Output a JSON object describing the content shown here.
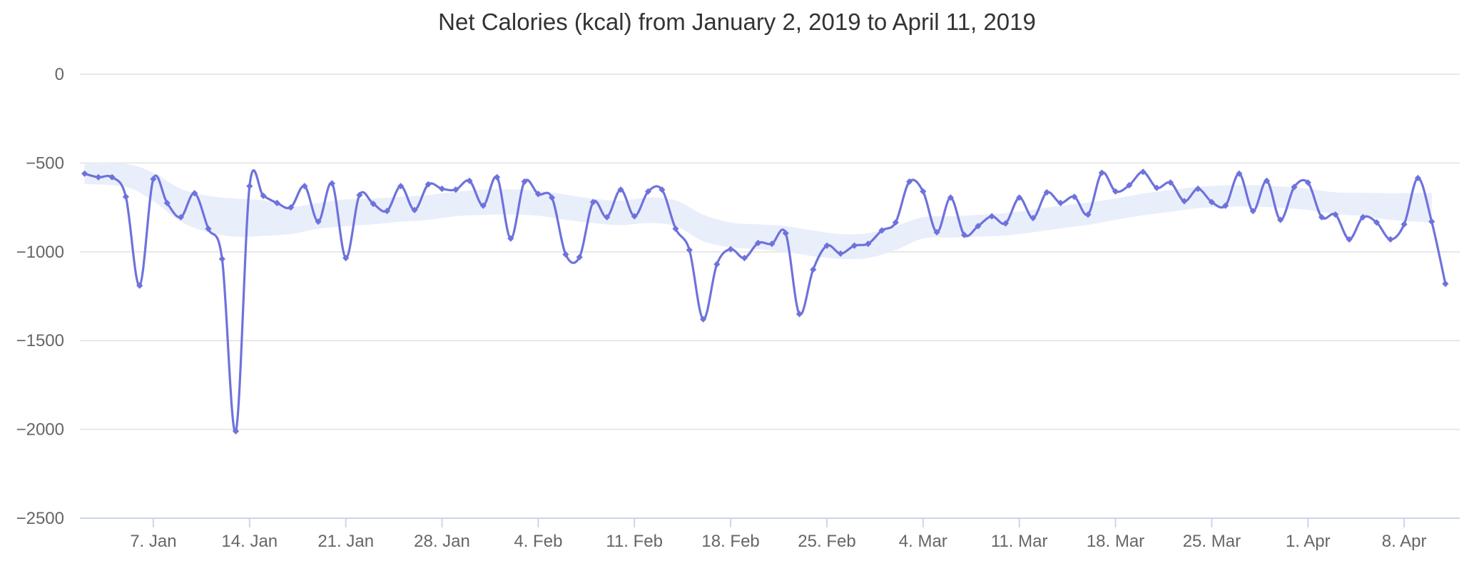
{
  "chart_data": {
    "type": "line",
    "title": "Net Calories (kcal) from January 2, 2019 to April 11, 2019",
    "xlabel": "",
    "ylabel": "",
    "ylim": [
      -2500,
      0
    ],
    "grid": true,
    "legend": "none",
    "series_name": "Net Calories (kcal)",
    "dates": [
      "2019-01-02",
      "2019-01-03",
      "2019-01-04",
      "2019-01-05",
      "2019-01-06",
      "2019-01-07",
      "2019-01-08",
      "2019-01-09",
      "2019-01-10",
      "2019-01-11",
      "2019-01-12",
      "2019-01-13",
      "2019-01-14",
      "2019-01-15",
      "2019-01-16",
      "2019-01-17",
      "2019-01-18",
      "2019-01-19",
      "2019-01-20",
      "2019-01-21",
      "2019-01-22",
      "2019-01-23",
      "2019-01-24",
      "2019-01-25",
      "2019-01-26",
      "2019-01-27",
      "2019-01-28",
      "2019-01-29",
      "2019-01-30",
      "2019-01-31",
      "2019-02-01",
      "2019-02-02",
      "2019-02-03",
      "2019-02-04",
      "2019-02-05",
      "2019-02-06",
      "2019-02-07",
      "2019-02-08",
      "2019-02-09",
      "2019-02-10",
      "2019-02-11",
      "2019-02-12",
      "2019-02-13",
      "2019-02-14",
      "2019-02-15",
      "2019-02-16",
      "2019-02-17",
      "2019-02-18",
      "2019-02-19",
      "2019-02-20",
      "2019-02-21",
      "2019-02-22",
      "2019-02-23",
      "2019-02-24",
      "2019-02-25",
      "2019-02-26",
      "2019-02-27",
      "2019-02-28",
      "2019-03-01",
      "2019-03-02",
      "2019-03-03",
      "2019-03-04",
      "2019-03-05",
      "2019-03-06",
      "2019-03-07",
      "2019-03-08",
      "2019-03-09",
      "2019-03-10",
      "2019-03-11",
      "2019-03-12",
      "2019-03-13",
      "2019-03-14",
      "2019-03-15",
      "2019-03-16",
      "2019-03-17",
      "2019-03-18",
      "2019-03-19",
      "2019-03-20",
      "2019-03-21",
      "2019-03-22",
      "2019-03-23",
      "2019-03-24",
      "2019-03-25",
      "2019-03-26",
      "2019-03-27",
      "2019-03-28",
      "2019-03-29",
      "2019-03-30",
      "2019-03-31",
      "2019-04-01",
      "2019-04-02",
      "2019-04-03",
      "2019-04-04",
      "2019-04-05",
      "2019-04-06",
      "2019-04-07",
      "2019-04-08",
      "2019-04-09",
      "2019-04-10",
      "2019-04-11"
    ],
    "values": [
      -560,
      -580,
      -580,
      -690,
      -1190,
      -590,
      -725,
      -805,
      -670,
      -870,
      -1040,
      -2010,
      -630,
      -685,
      -725,
      -750,
      -630,
      -830,
      -615,
      -1035,
      -680,
      -730,
      -770,
      -630,
      -765,
      -620,
      -645,
      -650,
      -600,
      -740,
      -580,
      -925,
      -605,
      -675,
      -695,
      -1015,
      -1030,
      -720,
      -805,
      -650,
      -800,
      -660,
      -650,
      -870,
      -990,
      -1380,
      -1070,
      -985,
      -1035,
      -950,
      -955,
      -895,
      -1350,
      -1100,
      -965,
      -1010,
      -965,
      -955,
      -880,
      -835,
      -605,
      -660,
      -890,
      -695,
      -905,
      -855,
      -800,
      -840,
      -695,
      -810,
      -665,
      -725,
      -690,
      -790,
      -555,
      -660,
      -625,
      -550,
      -640,
      -610,
      -715,
      -645,
      -720,
      -740,
      -560,
      -770,
      -600,
      -820,
      -635,
      -610,
      -805,
      -790,
      -930,
      -805,
      -835,
      -930,
      -845,
      -585,
      -830,
      -1180
    ],
    "smoothed_band": [
      {
        "d": 0,
        "hi": -500,
        "lo": -618
      },
      {
        "d": 3,
        "hi": -505,
        "lo": -635
      },
      {
        "d": 5,
        "hi": -555,
        "lo": -715
      },
      {
        "d": 7,
        "hi": -645,
        "lo": -830
      },
      {
        "d": 9,
        "hi": -685,
        "lo": -890
      },
      {
        "d": 11,
        "hi": -700,
        "lo": -915
      },
      {
        "d": 13,
        "hi": -710,
        "lo": -910
      },
      {
        "d": 15,
        "hi": -745,
        "lo": -900
      },
      {
        "d": 17,
        "hi": -725,
        "lo": -870
      },
      {
        "d": 19,
        "hi": -705,
        "lo": -855
      },
      {
        "d": 21,
        "hi": -700,
        "lo": -845
      },
      {
        "d": 23,
        "hi": -690,
        "lo": -830
      },
      {
        "d": 25,
        "hi": -680,
        "lo": -820
      },
      {
        "d": 27,
        "hi": -662,
        "lo": -800
      },
      {
        "d": 29,
        "hi": -650,
        "lo": -792
      },
      {
        "d": 31,
        "hi": -648,
        "lo": -790
      },
      {
        "d": 33,
        "hi": -655,
        "lo": -797
      },
      {
        "d": 35,
        "hi": -678,
        "lo": -820
      },
      {
        "d": 37,
        "hi": -700,
        "lo": -838
      },
      {
        "d": 39,
        "hi": -712,
        "lo": -850
      },
      {
        "d": 41,
        "hi": -695,
        "lo": -838
      },
      {
        "d": 43,
        "hi": -710,
        "lo": -855
      },
      {
        "d": 45,
        "hi": -790,
        "lo": -940
      },
      {
        "d": 47,
        "hi": -835,
        "lo": -975
      },
      {
        "d": 49,
        "hi": -845,
        "lo": -985
      },
      {
        "d": 51,
        "hi": -855,
        "lo": -1000
      },
      {
        "d": 53,
        "hi": -880,
        "lo": -1025
      },
      {
        "d": 55,
        "hi": -900,
        "lo": -1040
      },
      {
        "d": 57,
        "hi": -895,
        "lo": -1035
      },
      {
        "d": 59,
        "hi": -855,
        "lo": -990
      },
      {
        "d": 61,
        "hi": -805,
        "lo": -925
      },
      {
        "d": 63,
        "hi": -800,
        "lo": -920
      },
      {
        "d": 65,
        "hi": -792,
        "lo": -915
      },
      {
        "d": 67,
        "hi": -782,
        "lo": -908
      },
      {
        "d": 69,
        "hi": -762,
        "lo": -890
      },
      {
        "d": 71,
        "hi": -740,
        "lo": -868
      },
      {
        "d": 73,
        "hi": -722,
        "lo": -848
      },
      {
        "d": 75,
        "hi": -700,
        "lo": -820
      },
      {
        "d": 77,
        "hi": -672,
        "lo": -795
      },
      {
        "d": 79,
        "hi": -652,
        "lo": -775
      },
      {
        "d": 81,
        "hi": -634,
        "lo": -754
      },
      {
        "d": 83,
        "hi": -626,
        "lo": -746
      },
      {
        "d": 85,
        "hi": -625,
        "lo": -745
      },
      {
        "d": 87,
        "hi": -632,
        "lo": -752
      },
      {
        "d": 89,
        "hi": -645,
        "lo": -765
      },
      {
        "d": 91,
        "hi": -665,
        "lo": -788
      },
      {
        "d": 93,
        "hi": -668,
        "lo": -798
      },
      {
        "d": 95,
        "hi": -670,
        "lo": -820
      },
      {
        "d": 98,
        "hi": -668,
        "lo": -835
      }
    ],
    "x_ticks": [
      {
        "label": "7. Jan",
        "day": 5
      },
      {
        "label": "14. Jan",
        "day": 12
      },
      {
        "label": "21. Jan",
        "day": 19
      },
      {
        "label": "28. Jan",
        "day": 26
      },
      {
        "label": "4. Feb",
        "day": 33
      },
      {
        "label": "11. Feb",
        "day": 40
      },
      {
        "label": "18. Feb",
        "day": 47
      },
      {
        "label": "25. Feb",
        "day": 54
      },
      {
        "label": "4. Mar",
        "day": 61
      },
      {
        "label": "11. Mar",
        "day": 68
      },
      {
        "label": "18. Mar",
        "day": 75
      },
      {
        "label": "25. Mar",
        "day": 82
      },
      {
        "label": "1. Apr",
        "day": 89
      },
      {
        "label": "8. Apr",
        "day": 96
      }
    ],
    "y_ticks": [
      {
        "label": "0",
        "value": 0
      },
      {
        "label": "−500",
        "value": -500
      },
      {
        "label": "−1000",
        "value": -1000
      },
      {
        "label": "−1500",
        "value": -1500
      },
      {
        "label": "−2000",
        "value": -2000
      },
      {
        "label": "−2500",
        "value": -2500
      }
    ],
    "colors": {
      "line": "#6e72dc",
      "marker": "#6e72dc",
      "band_fill": "#e9eefb",
      "grid": "#e6e6e6",
      "axis_line": "#ccd6eb",
      "axis_label": "#666666",
      "title": "#333333",
      "background": "#ffffff"
    }
  }
}
